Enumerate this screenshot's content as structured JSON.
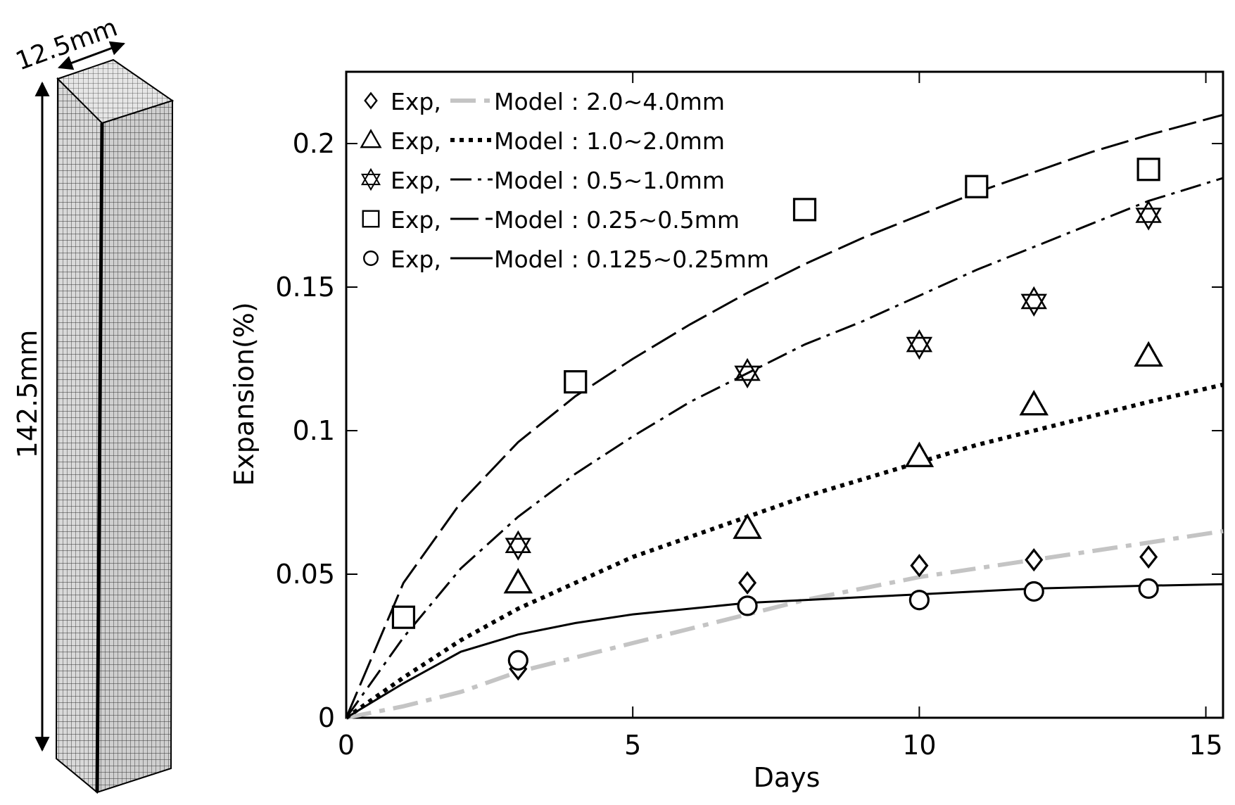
{
  "specimen": {
    "width_label": "12.5mm",
    "length_label": "142.5mm"
  },
  "chart_data": {
    "type": "scatter",
    "title": "",
    "xlabel": "Days",
    "ylabel": "Expansion(%)",
    "xlim": [
      0,
      15.3
    ],
    "ylim": [
      0,
      0.225
    ],
    "xticks": [
      0,
      5,
      10,
      15
    ],
    "xtick_labels": [
      "0",
      "5",
      "10",
      "15"
    ],
    "yticks": [
      0,
      0.05,
      0.1,
      0.15,
      0.2
    ],
    "ytick_labels": [
      "0",
      "0.05",
      "0.1",
      "0.15",
      "0.2"
    ],
    "legend_position": "top-left",
    "series": [
      {
        "name": "2.0~4.0mm",
        "legend_exp": "Exp,",
        "legend_model": "Model : 2.0~4.0mm",
        "marker": "diamond",
        "model_style": "grey-dashdot",
        "exp": {
          "x": [
            3,
            7,
            10,
            12,
            14
          ],
          "y": [
            0.017,
            0.047,
            0.053,
            0.055,
            0.056
          ]
        },
        "model": {
          "x": [
            0,
            1,
            2,
            3,
            4,
            5,
            6,
            7,
            8,
            9,
            10,
            11,
            12,
            13,
            14,
            15.3
          ],
          "y": [
            0,
            0.004,
            0.009,
            0.016,
            0.021,
            0.026,
            0.031,
            0.036,
            0.041,
            0.045,
            0.049,
            0.052,
            0.055,
            0.058,
            0.061,
            0.065
          ]
        }
      },
      {
        "name": "1.0~2.0mm",
        "legend_exp": "Exp,",
        "legend_model": "Model : 1.0~2.0mm",
        "marker": "triangle",
        "model_style": "dotted",
        "exp": {
          "x": [
            3,
            7,
            10,
            12,
            14
          ],
          "y": [
            0.047,
            0.066,
            0.091,
            0.109,
            0.126
          ]
        },
        "model": {
          "x": [
            0,
            1,
            2,
            3,
            4,
            5,
            6,
            7,
            8,
            9,
            10,
            11,
            12,
            13,
            14,
            15.3
          ],
          "y": [
            0,
            0.014,
            0.027,
            0.038,
            0.047,
            0.056,
            0.063,
            0.07,
            0.077,
            0.083,
            0.089,
            0.095,
            0.1,
            0.105,
            0.11,
            0.116
          ]
        }
      },
      {
        "name": "0.5~1.0mm",
        "legend_exp": "Exp,",
        "legend_model": "Model : 0.5~1.0mm",
        "marker": "star",
        "model_style": "dashdot",
        "exp": {
          "x": [
            3,
            7,
            10,
            12,
            14
          ],
          "y": [
            0.06,
            0.12,
            0.13,
            0.145,
            0.175
          ]
        },
        "model": {
          "x": [
            0,
            1,
            2,
            3,
            4,
            5,
            6,
            7,
            8,
            9,
            10,
            11,
            12,
            13,
            14,
            15.3
          ],
          "y": [
            0,
            0.028,
            0.052,
            0.07,
            0.085,
            0.098,
            0.11,
            0.12,
            0.13,
            0.138,
            0.147,
            0.156,
            0.164,
            0.172,
            0.18,
            0.188
          ]
        }
      },
      {
        "name": "0.25~0.5mm",
        "legend_exp": "Exp,",
        "legend_model": "Model : 0.25~0.5mm",
        "marker": "square",
        "model_style": "dashed",
        "exp": {
          "x": [
            1,
            4,
            8,
            11,
            14
          ],
          "y": [
            0.035,
            0.117,
            0.177,
            0.185,
            0.191
          ]
        },
        "model": {
          "x": [
            0,
            1,
            2,
            3,
            4,
            5,
            6,
            7,
            8,
            9,
            10,
            11,
            12,
            13,
            14,
            15.3
          ],
          "y": [
            0,
            0.047,
            0.075,
            0.096,
            0.112,
            0.125,
            0.137,
            0.148,
            0.158,
            0.167,
            0.175,
            0.183,
            0.19,
            0.197,
            0.203,
            0.21
          ]
        }
      },
      {
        "name": "0.125~0.25mm",
        "legend_exp": "Exp,",
        "legend_model": "Model : 0.125~0.25mm",
        "marker": "circle",
        "model_style": "solid",
        "exp": {
          "x": [
            3,
            7,
            10,
            12,
            14
          ],
          "y": [
            0.02,
            0.039,
            0.041,
            0.044,
            0.045
          ]
        },
        "model": {
          "x": [
            0,
            1,
            2,
            3,
            4,
            5,
            6,
            7,
            8,
            9,
            10,
            11,
            12,
            13,
            14,
            15.3
          ],
          "y": [
            0,
            0.012,
            0.023,
            0.029,
            0.033,
            0.036,
            0.038,
            0.04,
            0.041,
            0.042,
            0.043,
            0.044,
            0.045,
            0.0455,
            0.046,
            0.0465
          ]
        }
      }
    ]
  }
}
